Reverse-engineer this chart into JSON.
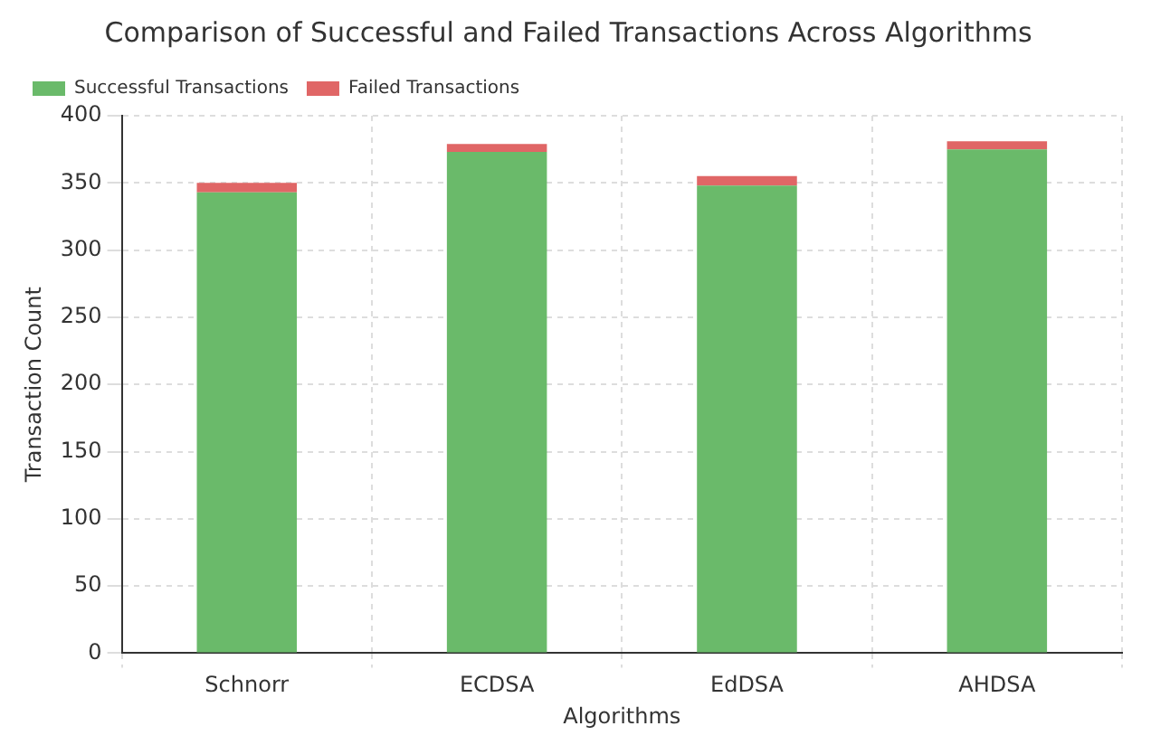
{
  "chart_data": {
    "type": "bar",
    "title": "Comparison of Successful and Failed Transactions Across Algorithms",
    "xlabel": "Algorithms",
    "ylabel": "Transaction Count",
    "categories": [
      "Schnorr",
      "ECDSA",
      "EdDSA",
      "AHDSA"
    ],
    "stacked": true,
    "series": [
      {
        "name": "Successful Transactions",
        "color": "#6aba6a",
        "values": [
          343,
          373,
          348,
          375
        ]
      },
      {
        "name": "Failed Transactions",
        "color": "#e06666",
        "values": [
          7,
          6,
          7,
          6
        ]
      }
    ],
    "ylim": [
      0,
      400
    ],
    "yticks": [
      0,
      50,
      100,
      150,
      200,
      250,
      300,
      350,
      400
    ],
    "grid": true,
    "legend": "top left"
  }
}
